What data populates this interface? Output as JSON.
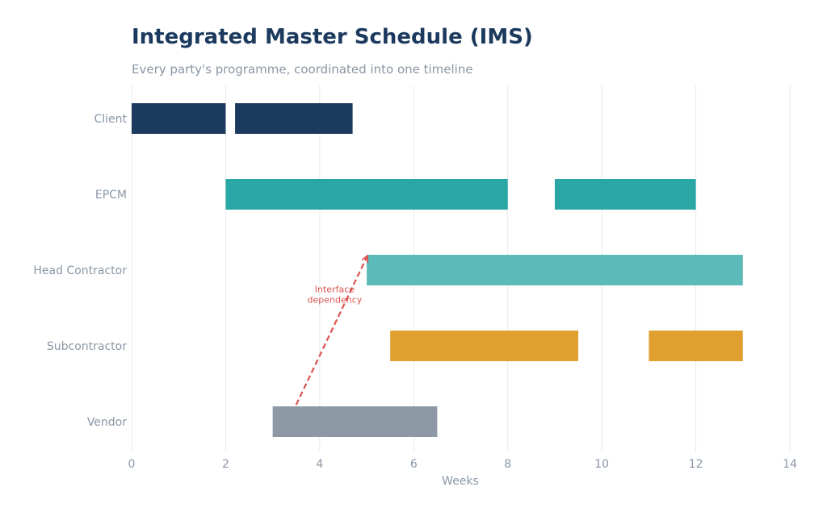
{
  "chart_data": {
    "type": "bar",
    "orientation": "horizontal-gantt",
    "title": "Integrated Master Schedule (IMS)",
    "subtitle": "Every party's programme, coordinated into one timeline",
    "xlabel": "Weeks",
    "xlim": [
      0,
      14
    ],
    "xticks": [
      0,
      2,
      4,
      6,
      8,
      10,
      12,
      14
    ],
    "grid": true,
    "categories": [
      "Client",
      "EPCM",
      "Head Contractor",
      "Subcontractor",
      "Vendor"
    ],
    "series": [
      {
        "category": "Client",
        "color": "#1c3a5e",
        "tasks": [
          {
            "start": 0,
            "end": 2.0
          },
          {
            "start": 2.2,
            "end": 4.7
          }
        ]
      },
      {
        "category": "EPCM",
        "color": "#2aa7a5",
        "tasks": [
          {
            "start": 2,
            "end": 8
          },
          {
            "start": 9,
            "end": 12
          }
        ]
      },
      {
        "category": "Head Contractor",
        "color": "#5cbab8",
        "tasks": [
          {
            "start": 5,
            "end": 13
          }
        ]
      },
      {
        "category": "Subcontractor",
        "color": "#e0a030",
        "tasks": [
          {
            "start": 5.5,
            "end": 9.5
          },
          {
            "start": 11,
            "end": 13
          }
        ]
      },
      {
        "category": "Vendor",
        "color": "#8c98a4",
        "tasks": [
          {
            "start": 3,
            "end": 6.5
          }
        ]
      }
    ],
    "annotations": [
      {
        "text_lines": [
          "Interface",
          "dependency"
        ],
        "from": {
          "category": "Vendor",
          "x": 3.5
        },
        "to": {
          "category": "Head Contractor",
          "x": 5.0
        },
        "color": "#d9534f",
        "style": "dashed-arrow"
      }
    ]
  }
}
